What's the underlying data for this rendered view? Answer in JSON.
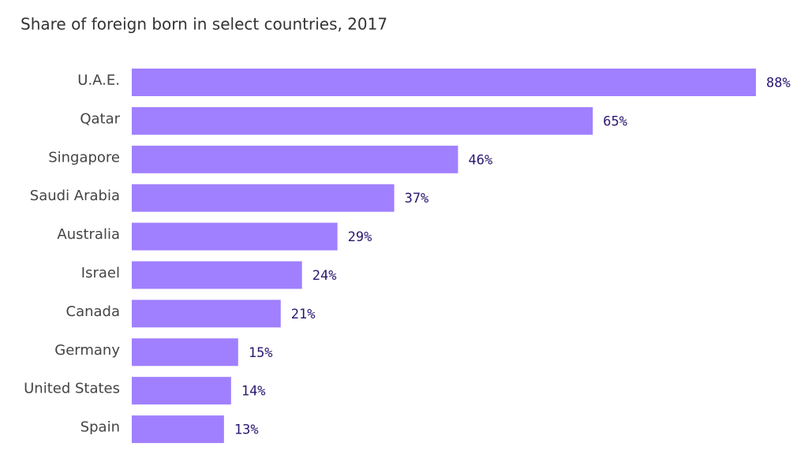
{
  "chart_data": {
    "type": "bar",
    "orientation": "horizontal",
    "title": "Share of foreign born in select countries, 2017",
    "categories": [
      "U.A.E.",
      "Qatar",
      "Singapore",
      "Saudi Arabia",
      "Australia",
      "Israel",
      "Canada",
      "Germany",
      "United States",
      "Spain"
    ],
    "values": [
      88,
      65,
      46,
      37,
      29,
      24,
      21,
      15,
      14,
      13
    ],
    "value_labels": [
      "88%",
      "65%",
      "46%",
      "37%",
      "29%",
      "24%",
      "21%",
      "15%",
      "14%",
      "13%"
    ],
    "color": "#a080ff"
  }
}
